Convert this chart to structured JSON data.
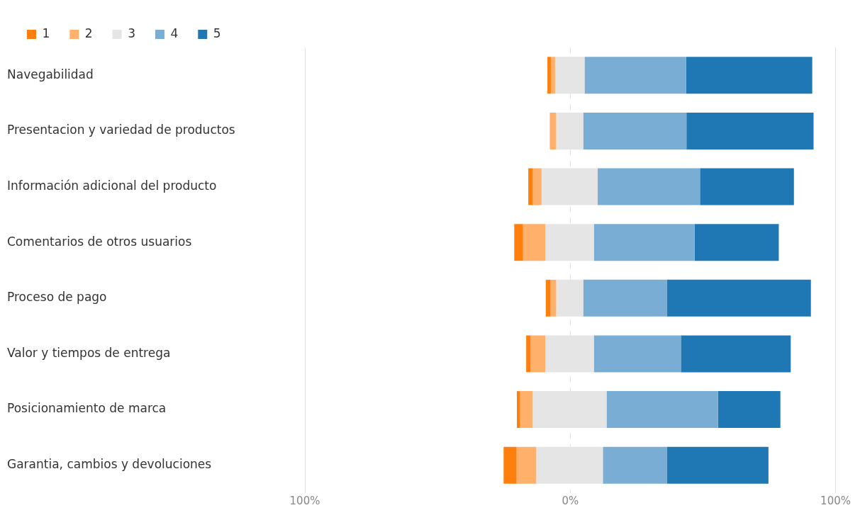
{
  "chart_data": {
    "type": "bar",
    "orientation": "horizontal",
    "categories": [
      "Navegabilidad",
      "Presentacion y variedad de productos",
      "Información adicional del producto",
      "Comentarios de otros usuarios",
      "Proceso de pago",
      "Valor y tiempos de entrega",
      "Posicionamiento de marca",
      "Garantia, cambios y devoluciones"
    ],
    "series": [
      {
        "name": "1",
        "color": "#ff7f0e",
        "base": [
          -8.6,
          null,
          -15.8,
          -21.1,
          -9.2,
          -16.6,
          -20.1,
          -25.1
        ],
        "values": [
          1.3,
          null,
          1.6,
          3.3,
          1.8,
          1.7,
          1.2,
          4.9
        ]
      },
      {
        "name": "2",
        "color": "#ffb06b",
        "base": [
          -7.3,
          -7.7,
          -14.2,
          -17.8,
          -7.4,
          -14.9,
          -18.9,
          -20.2
        ],
        "values": [
          1.6,
          2.4,
          3.4,
          8.4,
          2.1,
          5.5,
          4.7,
          7.4
        ]
      },
      {
        "name": "3",
        "color": "#e5e5e5",
        "base": [
          -5.7,
          -5.3,
          -10.8,
          -9.4,
          -5.3,
          -9.4,
          -14.2,
          -12.8
        ],
        "values": [
          11.1,
          10.2,
          21.1,
          18.3,
          10.2,
          18.3,
          27.9,
          25.1
        ]
      },
      {
        "name": "4",
        "color": "#7aadd3",
        "base": [
          5.4,
          4.9,
          10.3,
          8.9,
          4.9,
          8.9,
          13.7,
          12.3
        ],
        "values": [
          38.3,
          38.9,
          38.6,
          38.0,
          31.5,
          32.8,
          42.0,
          24.1
        ]
      },
      {
        "name": "5",
        "color": "#1f77b4",
        "base": [
          43.7,
          43.8,
          48.9,
          46.9,
          36.4,
          41.7,
          55.7,
          36.4
        ],
        "values": [
          47.5,
          47.9,
          35.4,
          31.7,
          54.3,
          41.4,
          23.5,
          38.3
        ]
      }
    ],
    "xlim": [
      -100,
      100
    ],
    "xticks": [
      {
        "value": -100,
        "label": "100%"
      },
      {
        "value": 0,
        "label": "0%"
      },
      {
        "value": 100,
        "label": "100%"
      }
    ],
    "grid": "x",
    "legend": "top left"
  }
}
